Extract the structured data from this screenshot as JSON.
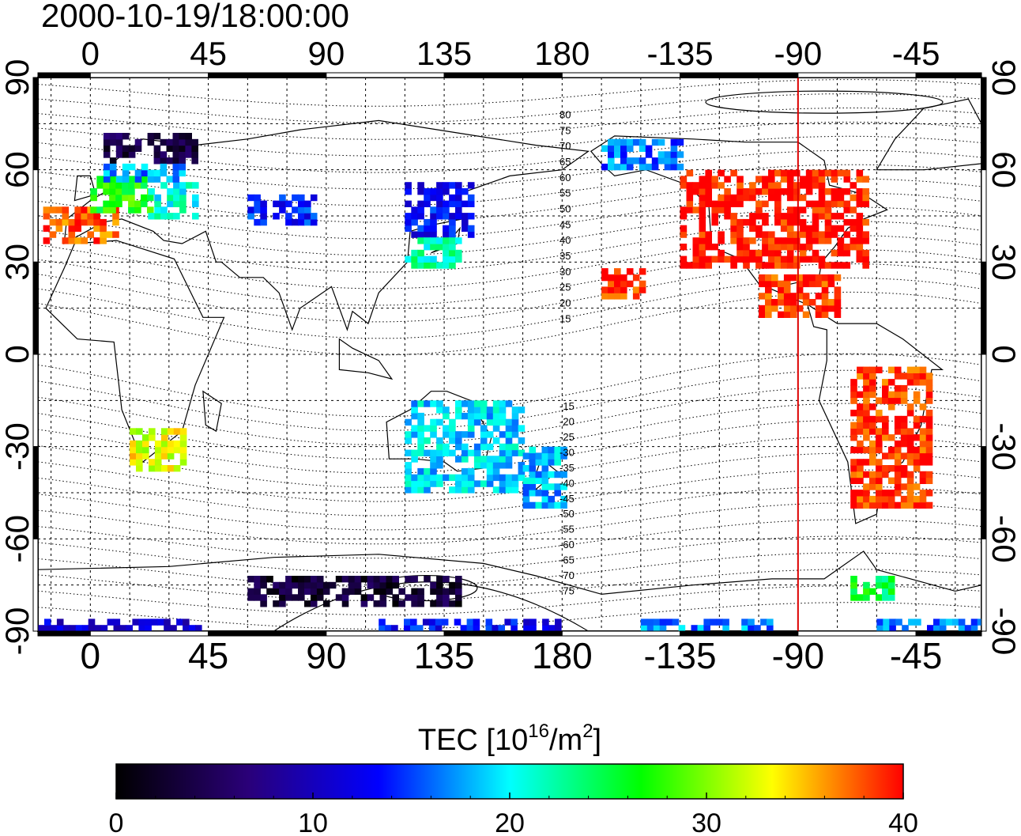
{
  "title": "2000-10-19/18:00:00",
  "colorbar": {
    "label_main": "TEC  [10",
    "label_sup1": "16",
    "label_mid": "/m",
    "label_sup2": "2",
    "label_end": "]",
    "min": 0,
    "max": 40,
    "ticks": [
      "0",
      "10",
      "20",
      "30",
      "40"
    ],
    "stops": [
      "#000000",
      "#2a0078",
      "#0000ff",
      "#00ffff",
      "#00ff00",
      "#ffff00",
      "#ff0000"
    ]
  },
  "axes": {
    "lon_ticks": [
      "0",
      "45",
      "90",
      "135",
      "180",
      "-135",
      "-90",
      "-45"
    ],
    "lat_ticks": [
      "90",
      "60",
      "30",
      "0",
      "-30",
      "-60",
      "-90"
    ]
  },
  "map_data": {
    "projection": "equirectangular",
    "lon_range": [
      -20,
      340
    ],
    "lat_range": [
      -90,
      90
    ],
    "marked_meridian_lon": -90,
    "marked_meridian_color": "#dd0000",
    "contour_labels": [
      "80",
      "75",
      "70",
      "65",
      "60",
      "55",
      "50",
      "45",
      "40",
      "35",
      "30",
      "25",
      "20",
      "15",
      "-15",
      "-20",
      "-25",
      "-30",
      "-35",
      "-40",
      "-45",
      "-50",
      "-55",
      "-60",
      "-65",
      "-70",
      "-75"
    ],
    "tec_regions": [
      {
        "lon": [
          -18,
          10
        ],
        "lat": [
          36,
          48
        ],
        "tec": 38
      },
      {
        "lon": [
          0,
          22
        ],
        "lat": [
          46,
          58
        ],
        "tec": 27
      },
      {
        "lon": [
          22,
          40
        ],
        "lat": [
          44,
          56
        ],
        "tec": 21
      },
      {
        "lon": [
          5,
          40
        ],
        "lat": [
          62,
          72
        ],
        "tec": 4
      },
      {
        "lon": [
          5,
          35
        ],
        "lat": [
          56,
          62
        ],
        "tec": 17
      },
      {
        "lon": [
          60,
          85
        ],
        "lat": [
          42,
          52
        ],
        "tec": 14
      },
      {
        "lon": [
          120,
          145
        ],
        "lat": [
          38,
          55
        ],
        "tec": 13
      },
      {
        "lon": [
          120,
          140
        ],
        "lat": [
          28,
          38
        ],
        "tec": 22
      },
      {
        "lon": [
          195,
          225
        ],
        "lat": [
          60,
          70
        ],
        "tec": 16
      },
      {
        "lon": [
          225,
          295
        ],
        "lat": [
          28,
          60
        ],
        "tec": 40
      },
      {
        "lon": [
          255,
          285
        ],
        "lat": [
          12,
          25
        ],
        "tec": 39
      },
      {
        "lon": [
          195,
          210
        ],
        "lat": [
          18,
          28
        ],
        "tec": 39
      },
      {
        "lon": [
          290,
          320
        ],
        "lat": [
          -50,
          -5
        ],
        "tec": 39
      },
      {
        "lon": [
          15,
          35
        ],
        "lat": [
          -38,
          -25
        ],
        "tec": 33
      },
      {
        "lon": [
          120,
          165
        ],
        "lat": [
          -45,
          -15
        ],
        "tec": 19
      },
      {
        "lon": [
          165,
          180
        ],
        "lat": [
          -50,
          -30
        ],
        "tec": 18
      },
      {
        "lon": [
          60,
          140
        ],
        "lat": [
          -82,
          -72
        ],
        "tec": 3
      },
      {
        "lon": [
          -20,
          40
        ],
        "lat": [
          -90,
          -86
        ],
        "tec": 11
      },
      {
        "lon": [
          110,
          180
        ],
        "lat": [
          -90,
          -86
        ],
        "tec": 13
      },
      {
        "lon": [
          210,
          260
        ],
        "lat": [
          -90,
          -86
        ],
        "tec": 17
      },
      {
        "lon": [
          300,
          340
        ],
        "lat": [
          -90,
          -86
        ],
        "tec": 16
      },
      {
        "lon": [
          290,
          305
        ],
        "lat": [
          -80,
          -72
        ],
        "tec": 25
      }
    ]
  }
}
